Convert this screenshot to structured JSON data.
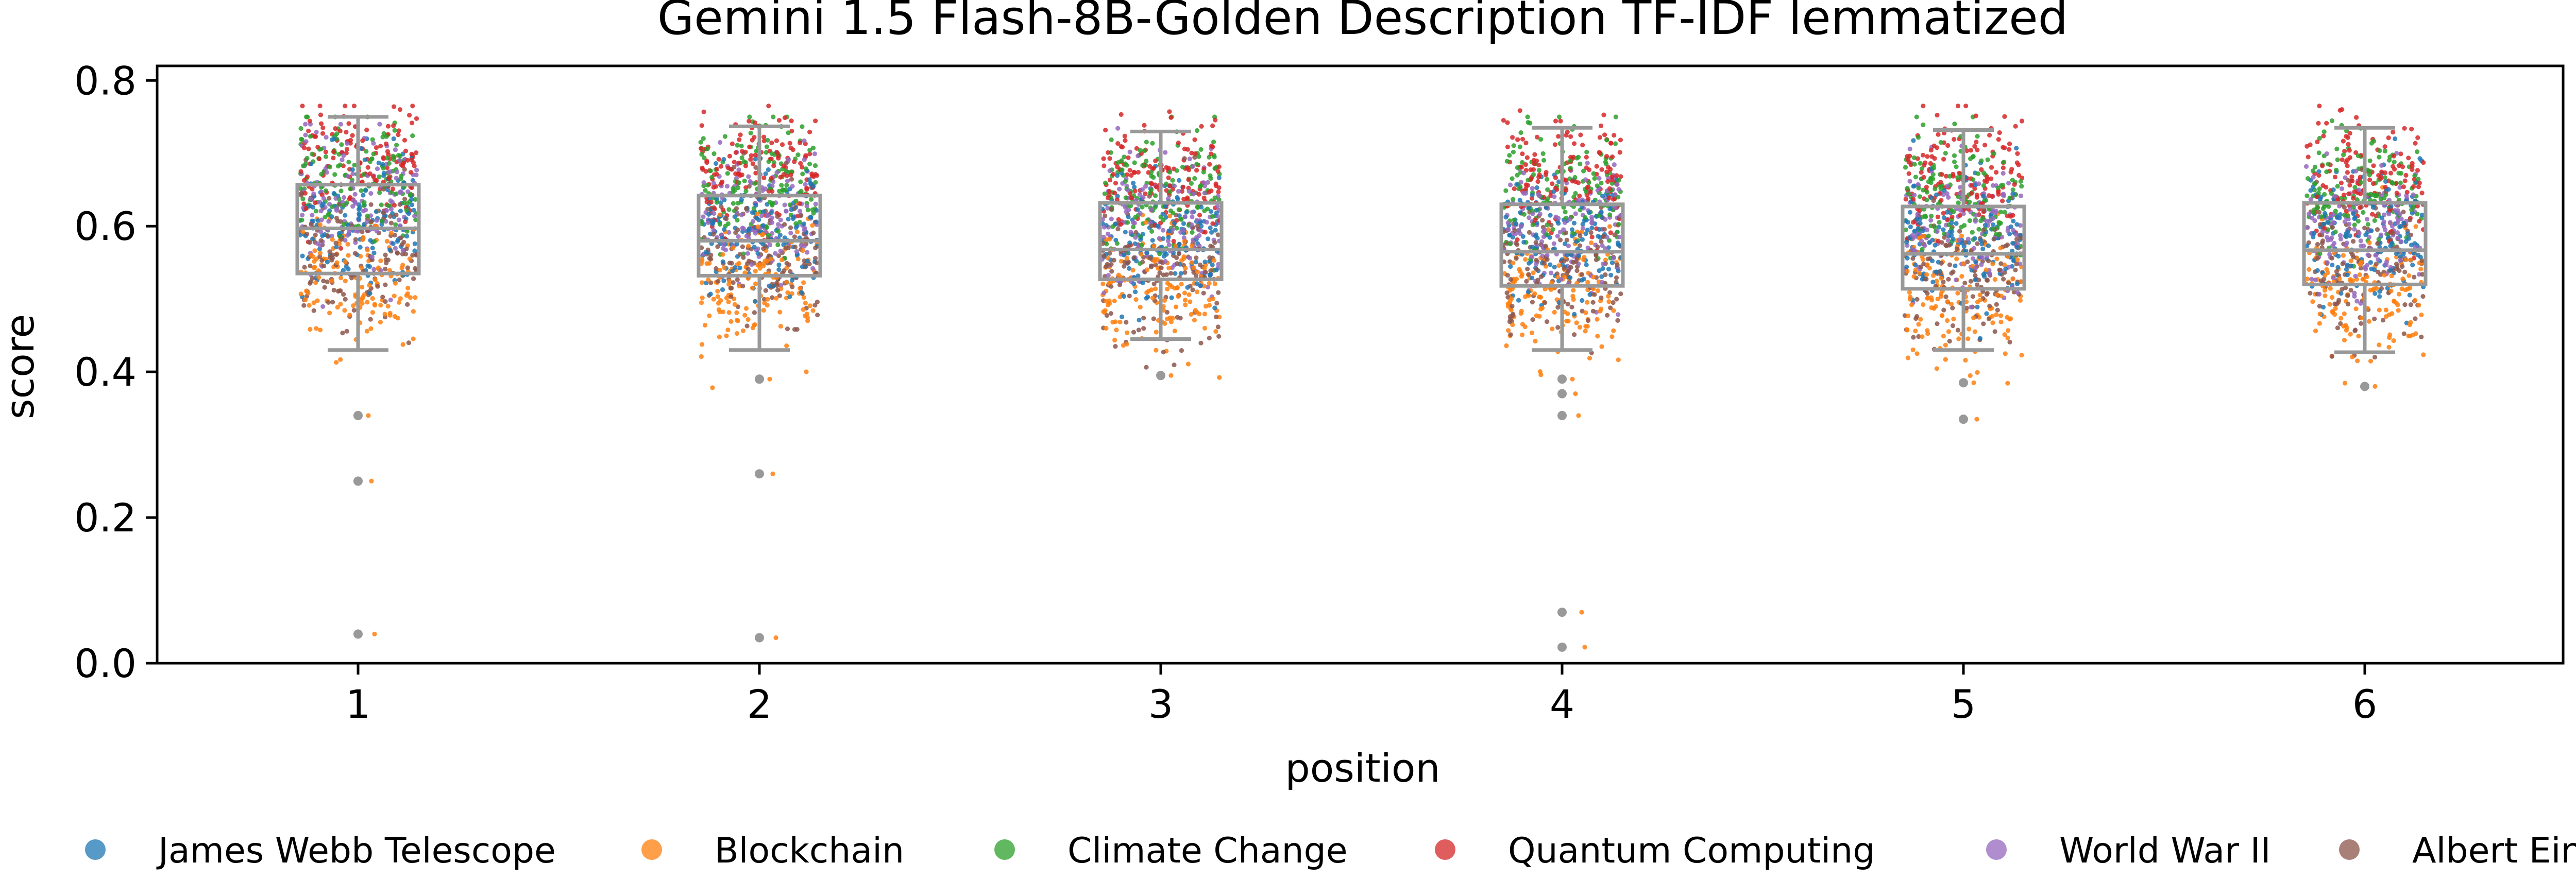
{
  "chart_data": {
    "type": "box-strip",
    "title": "Gemini 1.5 Flash-8B-Golden Description TF-IDF lemmatized",
    "xlabel": "position",
    "ylabel": "score",
    "categories": [
      "1",
      "2",
      "3",
      "4",
      "5",
      "6"
    ],
    "ylim": [
      0.0,
      0.82
    ],
    "yticks": [
      "0.0",
      "0.2",
      "0.4",
      "0.6",
      "0.8"
    ],
    "grid": false,
    "legend_position": "bottom",
    "box_color": "#999999",
    "boxes": [
      {
        "position": "1",
        "whisker_low": 0.43,
        "q1": 0.535,
        "median": 0.597,
        "q3": 0.657,
        "whisker_high": 0.75,
        "outliers": [
          0.34,
          0.25,
          0.04
        ]
      },
      {
        "position": "2",
        "whisker_low": 0.43,
        "q1": 0.532,
        "median": 0.58,
        "q3": 0.642,
        "whisker_high": 0.737,
        "outliers": [
          0.39,
          0.26,
          0.035
        ]
      },
      {
        "position": "3",
        "whisker_low": 0.445,
        "q1": 0.527,
        "median": 0.568,
        "q3": 0.632,
        "whisker_high": 0.73,
        "outliers": [
          0.395
        ]
      },
      {
        "position": "4",
        "whisker_low": 0.43,
        "q1": 0.518,
        "median": 0.565,
        "q3": 0.63,
        "whisker_high": 0.735,
        "outliers": [
          0.39,
          0.37,
          0.34,
          0.07,
          0.022
        ]
      },
      {
        "position": "5",
        "whisker_low": 0.43,
        "q1": 0.514,
        "median": 0.562,
        "q3": 0.627,
        "whisker_high": 0.732,
        "outliers": [
          0.385,
          0.335
        ]
      },
      {
        "position": "6",
        "whisker_low": 0.427,
        "q1": 0.52,
        "median": 0.567,
        "q3": 0.632,
        "whisker_high": 0.735,
        "outliers": [
          0.38
        ]
      }
    ],
    "series": [
      {
        "name": "James Webb Telescope",
        "color": "#1f77b4",
        "center": 0.59,
        "spread": 0.045,
        "min": 0.4,
        "max": 0.72
      },
      {
        "name": "Blockchain",
        "color": "#ff7f0e",
        "center": 0.515,
        "spread": 0.045,
        "min": 0.37,
        "max": 0.66
      },
      {
        "name": "Climate Change",
        "color": "#2ca02c",
        "center": 0.655,
        "spread": 0.045,
        "min": 0.45,
        "max": 0.75
      },
      {
        "name": "Quantum Computing",
        "color": "#d62728",
        "center": 0.675,
        "spread": 0.04,
        "min": 0.47,
        "max": 0.765
      },
      {
        "name": "World War II",
        "color": "#9467bd",
        "center": 0.61,
        "spread": 0.045,
        "min": 0.43,
        "max": 0.74
      },
      {
        "name": "Albert Einstein",
        "color": "#8c564b",
        "center": 0.55,
        "spread": 0.05,
        "min": 0.4,
        "max": 0.7
      }
    ],
    "points_per_series_per_position": 140
  }
}
